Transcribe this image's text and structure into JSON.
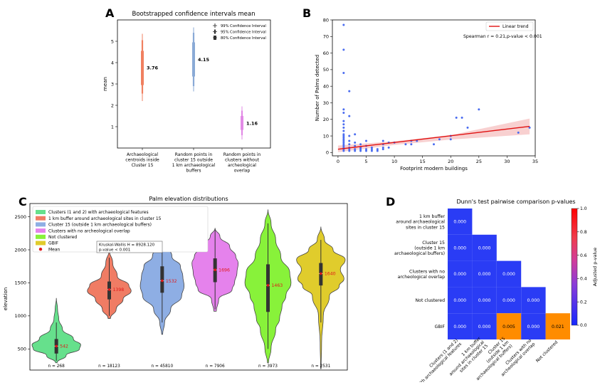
{
  "panels": {
    "A": {
      "letter": "A"
    },
    "B": {
      "letter": "B"
    },
    "C": {
      "letter": "C"
    },
    "D": {
      "letter": "D"
    }
  },
  "chart_data": [
    {
      "id": "A",
      "type": "errorbar",
      "title": "Bootstrapped confidence intervals mean",
      "ylabel": "mean",
      "ylim": [
        0,
        6
      ],
      "yticks": [
        1,
        2,
        3,
        4,
        5
      ],
      "categories": [
        [
          "Archaeological",
          "centroids inside",
          "Cluster 15"
        ],
        [
          "Random points in",
          "cluster 15 outside",
          "1 km archaeological",
          "buffers"
        ],
        [
          "Random points in",
          "clusters without",
          "archeological",
          "overlap"
        ]
      ],
      "means": [
        3.76,
        4.15,
        1.16
      ],
      "mean_labels": [
        "3.76",
        "4.15",
        "1.16"
      ],
      "ci99": [
        [
          2.2,
          5.35
        ],
        [
          2.65,
          5.65
        ],
        [
          0.4,
          1.95
        ]
      ],
      "ci95": [
        [
          2.55,
          5.05
        ],
        [
          2.9,
          5.4
        ],
        [
          0.6,
          1.75
        ]
      ],
      "ci80": [
        [
          2.95,
          4.55
        ],
        [
          3.35,
          4.95
        ],
        [
          0.85,
          1.5
        ]
      ],
      "colors": [
        "#f08060",
        "#8aaad6",
        "#e28ae6"
      ],
      "legend": [
        "99% Confidence Interval",
        "95% Confidence Interval",
        "80% Confidence Interval"
      ]
    },
    {
      "id": "B",
      "type": "scatter",
      "xlabel": "Footprint modern buildings",
      "ylabel": "Number of Palms detected",
      "xlim": [
        -1,
        35
      ],
      "ylim": [
        -2,
        80
      ],
      "xticks": [
        0,
        5,
        10,
        15,
        20,
        25,
        30,
        35
      ],
      "yticks": [
        0,
        10,
        20,
        30,
        40,
        50,
        60,
        70,
        80
      ],
      "points": [
        [
          1,
          77
        ],
        [
          1,
          62
        ],
        [
          1,
          48
        ],
        [
          1,
          26
        ],
        [
          1,
          24
        ],
        [
          1,
          19
        ],
        [
          1,
          17
        ],
        [
          1,
          15
        ],
        [
          1,
          13
        ],
        [
          1,
          11
        ],
        [
          1,
          10
        ],
        [
          1,
          9
        ],
        [
          1,
          8
        ],
        [
          1,
          7
        ],
        [
          1,
          6
        ],
        [
          1,
          5
        ],
        [
          1,
          4
        ],
        [
          1,
          3
        ],
        [
          1,
          2
        ],
        [
          1,
          1
        ],
        [
          2,
          37
        ],
        [
          2,
          22
        ],
        [
          2,
          10
        ],
        [
          2,
          7
        ],
        [
          2,
          5
        ],
        [
          2,
          3
        ],
        [
          2,
          2
        ],
        [
          2,
          1
        ],
        [
          3,
          11
        ],
        [
          3,
          6
        ],
        [
          3,
          4
        ],
        [
          3,
          2
        ],
        [
          3,
          1
        ],
        [
          4,
          5
        ],
        [
          4,
          3
        ],
        [
          4,
          2
        ],
        [
          4,
          1
        ],
        [
          5,
          7
        ],
        [
          5,
          4
        ],
        [
          5,
          2
        ],
        [
          5,
          1
        ],
        [
          6,
          3
        ],
        [
          6,
          2
        ],
        [
          6,
          1
        ],
        [
          7,
          2
        ],
        [
          7,
          1
        ],
        [
          8,
          7
        ],
        [
          8,
          5
        ],
        [
          8,
          3
        ],
        [
          8,
          2
        ],
        [
          9,
          6
        ],
        [
          9,
          3
        ],
        [
          10,
          6
        ],
        [
          12,
          5
        ],
        [
          13,
          7
        ],
        [
          13,
          5
        ],
        [
          14,
          7
        ],
        [
          17,
          5
        ],
        [
          18,
          8
        ],
        [
          20,
          10
        ],
        [
          20,
          8
        ],
        [
          21,
          21
        ],
        [
          22,
          21
        ],
        [
          23,
          15
        ],
        [
          25,
          26
        ],
        [
          32,
          12
        ],
        [
          34,
          15
        ]
      ],
      "trend": {
        "x": [
          0,
          34
        ],
        "y": [
          2.0,
          15.8
        ]
      },
      "band_upper": [
        [
          0,
          4.2
        ],
        [
          10,
          6.8
        ],
        [
          20,
          10.5
        ],
        [
          34,
          20.5
        ]
      ],
      "band_lower": [
        [
          0,
          0.2
        ],
        [
          10,
          4.6
        ],
        [
          20,
          7.8
        ],
        [
          34,
          11.0
        ]
      ],
      "legend": "Linear trend",
      "annotation": "Spearman r = 0.21,p-value < 0.001"
    },
    {
      "id": "C",
      "type": "violin",
      "title": "Palm elevation distributions",
      "ylabel": "elevation",
      "ylim": [
        180,
        2700
      ],
      "yticks": [
        500,
        1000,
        1500,
        2000,
        2500
      ],
      "groups": [
        {
          "label": "Clusters (1 and 2) with archaeological features",
          "color": "#66e08c",
          "mean": 542,
          "mean_label": "542",
          "n_label": "n = 268",
          "min": 290,
          "max": 1270,
          "q1": 430,
          "q3": 650,
          "wlo": 320,
          "whi": 900,
          "profile": [
            [
              290,
              0.03
            ],
            [
              400,
              0.4
            ],
            [
              500,
              0.95
            ],
            [
              560,
              1.0
            ],
            [
              650,
              0.7
            ],
            [
              800,
              0.25
            ],
            [
              950,
              0.1
            ],
            [
              1100,
              0.05
            ],
            [
              1270,
              0.0
            ]
          ],
          "width": 0.95
        },
        {
          "label": "1 km buffer around archaeological sites in cluster 15",
          "color": "#f07c64",
          "mean": 1398,
          "mean_label": "1398",
          "n_label": "n = 18123",
          "min": 960,
          "max": 2000,
          "q1": 1250,
          "q3": 1520,
          "wlo": 1000,
          "whi": 1880,
          "profile": [
            [
              960,
              0.05
            ],
            [
              1100,
              0.3
            ],
            [
              1250,
              0.6
            ],
            [
              1380,
              0.95
            ],
            [
              1460,
              0.85
            ],
            [
              1600,
              0.35
            ],
            [
              1800,
              0.15
            ],
            [
              2000,
              0.0
            ]
          ],
          "width": 0.9
        },
        {
          "label": "Cluster 15 (outside 1 km archaeological buffers)",
          "color": "#8eaee4",
          "mean": 1532,
          "mean_label": "1532",
          "n_label": "n = 45810",
          "min": 720,
          "max": 2290,
          "q1": 1350,
          "q3": 1750,
          "wlo": 900,
          "whi": 2150,
          "profile": [
            [
              720,
              0.02
            ],
            [
              900,
              0.1
            ],
            [
              1100,
              0.35
            ],
            [
              1300,
              0.8
            ],
            [
              1450,
              0.9
            ],
            [
              1600,
              0.85
            ],
            [
              1750,
              0.75
            ],
            [
              1900,
              0.4
            ],
            [
              2100,
              0.12
            ],
            [
              2290,
              0.0
            ]
          ],
          "width": 0.95
        },
        {
          "label": "Clusters with no archeological overlap",
          "color": "#e582ec",
          "mean": 1696,
          "mean_label": "1696",
          "n_label": "n = 7906",
          "min": 1070,
          "max": 2330,
          "q1": 1510,
          "q3": 1870,
          "wlo": 1100,
          "whi": 2300,
          "profile": [
            [
              1070,
              0.05
            ],
            [
              1250,
              0.15
            ],
            [
              1400,
              0.7
            ],
            [
              1500,
              0.8
            ],
            [
              1650,
              0.9
            ],
            [
              1800,
              0.95
            ],
            [
              1900,
              0.85
            ],
            [
              2050,
              0.6
            ],
            [
              2200,
              0.2
            ],
            [
              2330,
              0.0
            ]
          ],
          "width": 0.95
        },
        {
          "label": "Not clustered",
          "color": "#88f23a",
          "mean": 1463,
          "mean_label": "1463",
          "n_label": "n = 3973",
          "min": 290,
          "max": 2610,
          "q1": 1060,
          "q3": 1780,
          "wlo": 500,
          "whi": 2400,
          "profile": [
            [
              290,
              0.02
            ],
            [
              500,
              0.12
            ],
            [
              800,
              0.3
            ],
            [
              950,
              0.45
            ],
            [
              1150,
              0.55
            ],
            [
              1300,
              0.7
            ],
            [
              1500,
              0.9
            ],
            [
              1650,
              0.85
            ],
            [
              1900,
              0.5
            ],
            [
              2150,
              0.3
            ],
            [
              2400,
              0.12
            ],
            [
              2610,
              0.0
            ]
          ],
          "width": 1.0
        },
        {
          "label": "GBIF",
          "color": "#e0cc2c",
          "mean": 1640,
          "mean_label": "1640",
          "n_label": "n = 2531",
          "min": 200,
          "max": 2350,
          "q1": 1460,
          "q3": 1800,
          "wlo": 900,
          "whi": 2150,
          "profile": [
            [
              200,
              0.01
            ],
            [
              600,
              0.03
            ],
            [
              1000,
              0.1
            ],
            [
              1300,
              0.35
            ],
            [
              1450,
              0.75
            ],
            [
              1560,
              0.95
            ],
            [
              1700,
              0.8
            ],
            [
              1850,
              1.0
            ],
            [
              2000,
              0.5
            ],
            [
              2150,
              0.15
            ],
            [
              2350,
              0.0
            ]
          ],
          "width": 0.95
        }
      ],
      "legend_mean": "Mean",
      "annotation_lines": [
        "Kruskal-Wallis H = 8928.120",
        "p-value  < 0.001"
      ]
    },
    {
      "id": "D",
      "type": "heatmap",
      "title": "Dunn's test pairwise comparison p-values",
      "row_labels": [
        [
          "1 km buffer",
          "around archaeological",
          "sites in cluster 15"
        ],
        [
          "Cluster 15",
          "(outside 1 km",
          "archaeological buffers)"
        ],
        [
          "Clusters with no",
          "archeological overlap"
        ],
        [
          "Not clustered"
        ],
        [
          "GBIF"
        ]
      ],
      "col_labels": [
        [
          "Clusters (1 and 2)",
          "with archaeological features"
        ],
        [
          "1 km buffer",
          "around archaeological",
          "sites in cluster 15"
        ],
        [
          "Cluster 15",
          "(outside 1 km",
          "archaeological buffers)"
        ],
        [
          "Clusters with no",
          "archeological overlap"
        ],
        [
          "Not clustered"
        ]
      ],
      "values": [
        [
          "0.000",
          null,
          null,
          null,
          null
        ],
        [
          "0.000",
          "0.000",
          null,
          null,
          null
        ],
        [
          "0.000",
          "0.000",
          "0.000",
          null,
          null
        ],
        [
          "0.000",
          "0.000",
          "0.000",
          "0.000",
          null
        ],
        [
          "0.000",
          "0.000",
          "0.005",
          "0.000",
          "0.021"
        ]
      ],
      "colorbar_label": "Adjusted p-value",
      "colorbar_ticks": [
        "0.0",
        "0.2",
        "0.4",
        "0.6",
        "0.8",
        "1.0"
      ],
      "cell_low": "#2a3cf5",
      "cell_mid": "#ff8c00"
    }
  ]
}
